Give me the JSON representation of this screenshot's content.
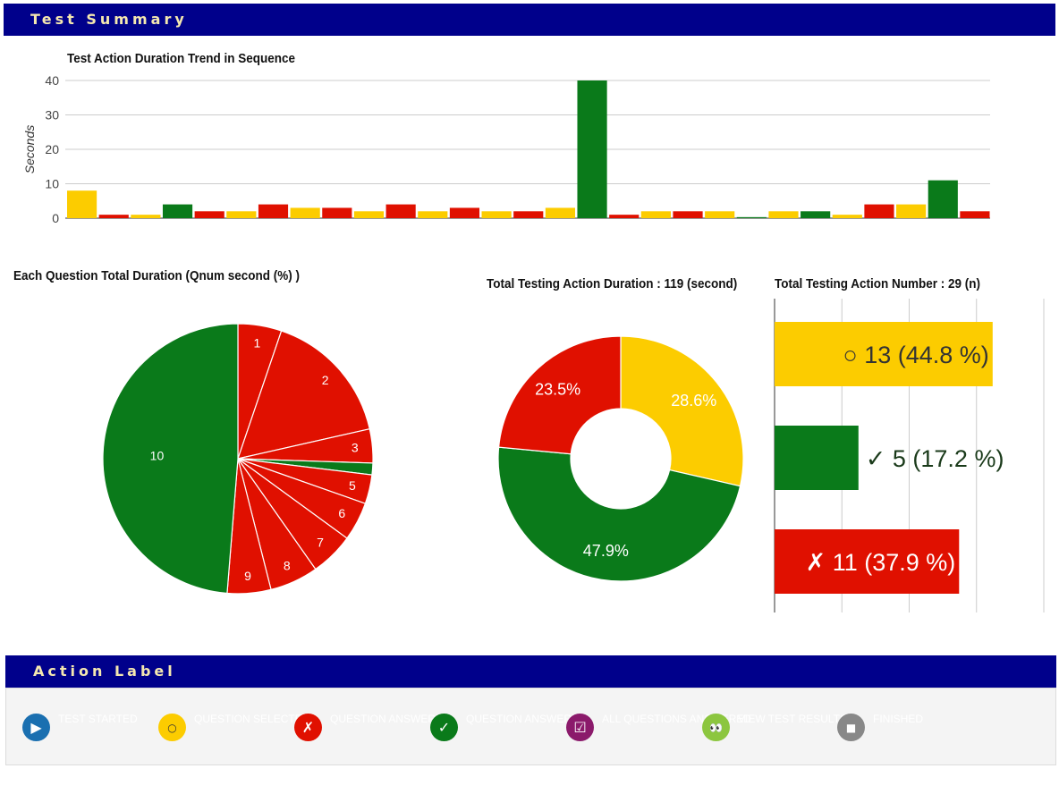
{
  "header": {
    "title": "Test Summary"
  },
  "action_label_header": {
    "title": "Action Label"
  },
  "colors": {
    "yellow": "#fccc00",
    "red": "#e01000",
    "green": "#0a7a1a",
    "navy": "#00008b"
  },
  "chart_data": [
    {
      "type": "bar",
      "title": "Test Action Duration Trend in Sequence",
      "ylabel": "Seconds",
      "ylim": [
        0,
        40
      ],
      "yticks": [
        "0",
        "10",
        "20",
        "30",
        "40"
      ],
      "grid": true,
      "values": [
        8,
        1,
        1,
        4,
        2,
        2,
        4,
        3,
        3,
        2,
        4,
        2,
        3,
        2,
        2,
        3,
        40,
        1,
        2,
        2,
        2,
        0.3,
        2,
        2,
        1,
        4,
        4,
        11,
        2
      ],
      "colors": [
        "yellow",
        "red",
        "yellow",
        "green",
        "red",
        "yellow",
        "red",
        "yellow",
        "red",
        "yellow",
        "red",
        "yellow",
        "red",
        "yellow",
        "red",
        "yellow",
        "green",
        "red",
        "yellow",
        "red",
        "yellow",
        "green",
        "yellow",
        "green",
        "yellow",
        "red",
        "yellow",
        "green",
        "red"
      ]
    },
    {
      "type": "pie",
      "title": "Each Question Total Duration (Qnum second (%) )",
      "slices": [
        {
          "label": "1",
          "value": 4.5,
          "color": "red"
        },
        {
          "label": "2",
          "value": 14,
          "color": "red"
        },
        {
          "label": "3",
          "value": 3.5,
          "color": "red"
        },
        {
          "label": "",
          "value": 1.2,
          "color": "green"
        },
        {
          "label": "5",
          "value": 3,
          "color": "red"
        },
        {
          "label": "6",
          "value": 4,
          "color": "red"
        },
        {
          "label": "7",
          "value": 4.5,
          "color": "red"
        },
        {
          "label": "8",
          "value": 5,
          "color": "red"
        },
        {
          "label": "9",
          "value": 4.5,
          "color": "red"
        },
        {
          "label": "10",
          "value": 42,
          "color": "green"
        }
      ]
    },
    {
      "type": "pie",
      "donut": true,
      "title": "Total Testing Action Duration : 119 (second)",
      "slices": [
        {
          "label": "28.6%",
          "value": 28.6,
          "color": "yellow"
        },
        {
          "label": "47.9%",
          "value": 47.9,
          "color": "green"
        },
        {
          "label": "23.5%",
          "value": 23.5,
          "color": "red"
        }
      ]
    },
    {
      "type": "bar",
      "orientation": "horizontal",
      "title": "Total Testing Action Number : 29 (n)",
      "xlim": [
        0,
        13
      ],
      "grid": true,
      "bars": [
        {
          "label": "○ 13 (44.8 %)",
          "value": 13,
          "color": "yellow",
          "text_color": "#333333"
        },
        {
          "label": "✓ 5 (17.2 %)",
          "value": 5,
          "color": "green",
          "text_color": "#1a3a1a"
        },
        {
          "label": "✗ 11 (37.9 %)",
          "value": 11,
          "color": "red",
          "text_color": "#ffffff"
        }
      ]
    }
  ],
  "legend": [
    {
      "icon": "play-icon",
      "glyph": "▶",
      "color": "#1a6fb0",
      "label": "TEST STARTED"
    },
    {
      "icon": "circle-icon",
      "glyph": "○",
      "color": "#fccc00",
      "label": "QUESTION SELECTED"
    },
    {
      "icon": "cross-icon",
      "glyph": "✗",
      "color": "#e01000",
      "label": "QUESTION ANSWERED"
    },
    {
      "icon": "check-icon",
      "glyph": "✓",
      "color": "#0a7a1a",
      "label": "QUESTION ANSWERED"
    },
    {
      "icon": "checkbox-icon",
      "glyph": "☑",
      "color": "#8b1a6b",
      "label": "ALL QUESTIONS ANSWERED"
    },
    {
      "icon": "view-results-icon",
      "glyph": "👀",
      "color": "#8cc63f",
      "label": "VIEW TEST RESULTS"
    },
    {
      "icon": "stop-icon",
      "glyph": "■",
      "color": "#888888",
      "label": "FINISHED"
    }
  ]
}
